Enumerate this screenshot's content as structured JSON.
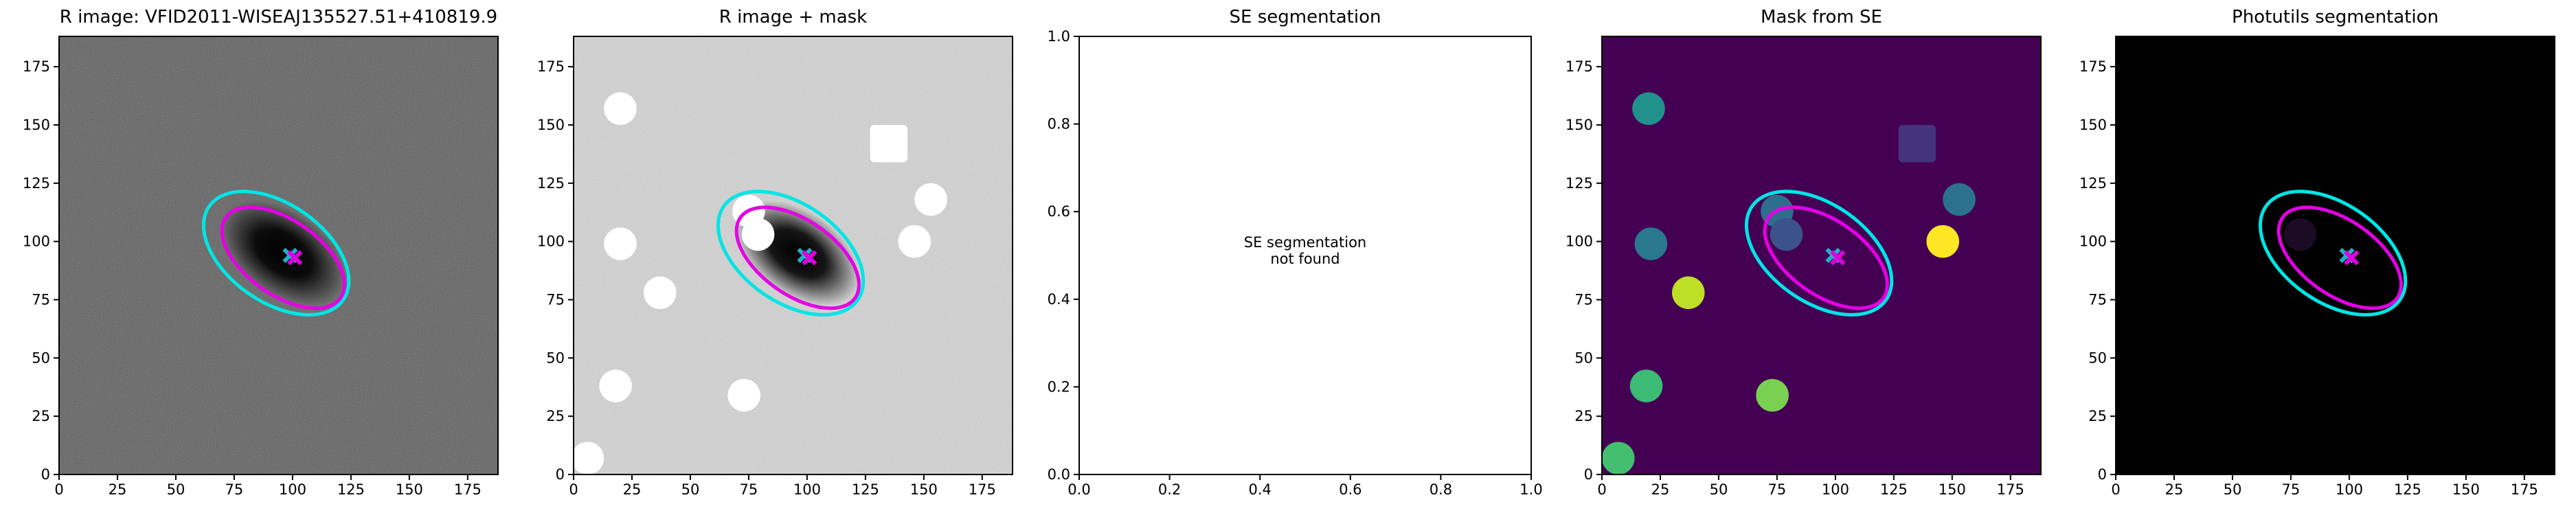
{
  "chart_data": [
    {
      "type": "image",
      "title": "R image: VFID2011-WISEAJ135527.51+410819.9",
      "background": "#5a5a5a",
      "noise": true,
      "xlim": [
        0,
        188
      ],
      "ylim": [
        0,
        188
      ],
      "xticks": [
        0,
        25,
        50,
        75,
        100,
        125,
        150,
        175
      ],
      "yticks": [
        0,
        25,
        50,
        75,
        100,
        125,
        150,
        175
      ],
      "source": {
        "x": 96,
        "y": 95,
        "a": 30,
        "b": 18,
        "angle": -35
      },
      "masks": [],
      "ellipses": [
        {
          "color": "#00e5e5",
          "x": 93,
          "y": 95,
          "a": 35,
          "b": 21,
          "angle": -35
        },
        {
          "color": "#e500e5",
          "x": 96,
          "y": 93,
          "a": 30,
          "b": 16,
          "angle": -35
        }
      ],
      "centers": [
        {
          "color": "#20b0c8",
          "x": 99,
          "y": 94
        },
        {
          "color": "#e000e0",
          "x": 101,
          "y": 93
        }
      ]
    },
    {
      "type": "image",
      "title": "R image + mask",
      "background": "#d6d6d6",
      "noise": true,
      "xlim": [
        0,
        188
      ],
      "ylim": [
        0,
        188
      ],
      "xticks": [
        0,
        25,
        50,
        75,
        100,
        125,
        150,
        175
      ],
      "yticks": [
        0,
        25,
        50,
        75,
        100,
        125,
        150,
        175
      ],
      "source": {
        "x": 96,
        "y": 95,
        "a": 30,
        "b": 18,
        "angle": -35
      },
      "masks": [
        {
          "x": 20,
          "y": 157,
          "r": 7,
          "color": "#ffffff"
        },
        {
          "x": 20,
          "y": 99,
          "r": 7,
          "color": "#ffffff"
        },
        {
          "x": 37,
          "y": 78,
          "r": 7,
          "color": "#ffffff"
        },
        {
          "x": 18,
          "y": 38,
          "r": 7,
          "color": "#ffffff"
        },
        {
          "x": 73,
          "y": 34,
          "r": 7,
          "color": "#ffffff"
        },
        {
          "x": 6,
          "y": 7,
          "r": 7,
          "color": "#ffffff"
        },
        {
          "x": 75,
          "y": 113,
          "r": 7,
          "color": "#ffffff"
        },
        {
          "x": 79,
          "y": 103,
          "r": 7,
          "color": "#ffffff"
        },
        {
          "x": 135,
          "y": 142,
          "r": 8,
          "color": "#ffffff",
          "shape": "square"
        },
        {
          "x": 153,
          "y": 118,
          "r": 7,
          "color": "#ffffff"
        },
        {
          "x": 146,
          "y": 100,
          "r": 7,
          "color": "#ffffff"
        }
      ],
      "ellipses": [
        {
          "color": "#00e5e5",
          "x": 93,
          "y": 95,
          "a": 35,
          "b": 21,
          "angle": -35
        },
        {
          "color": "#e500e5",
          "x": 96,
          "y": 93,
          "a": 30,
          "b": 16,
          "angle": -35
        }
      ],
      "centers": [
        {
          "color": "#20b0c8",
          "x": 99,
          "y": 94
        },
        {
          "color": "#e000e0",
          "x": 101,
          "y": 93
        }
      ]
    },
    {
      "type": "annotation",
      "title": "SE segmentation",
      "text": [
        "SE segmentation",
        "not found"
      ],
      "xlim": [
        0,
        1
      ],
      "ylim": [
        0,
        1
      ],
      "xticks": [
        {
          "value": 0,
          "label": "0.0"
        },
        0.2,
        0.4,
        0.6,
        0.8,
        {
          "value": 1,
          "label": "1.0"
        }
      ],
      "yticks": [
        {
          "value": 0,
          "label": "0.0"
        },
        0.2,
        0.4,
        0.6,
        0.8,
        {
          "value": 1,
          "label": "1.0"
        }
      ]
    },
    {
      "type": "image",
      "title": "Mask from SE",
      "background": "#440154",
      "noise": false,
      "xlim": [
        0,
        188
      ],
      "ylim": [
        0,
        188
      ],
      "xticks": [
        0,
        25,
        50,
        75,
        100,
        125,
        150,
        175
      ],
      "yticks": [
        0,
        25,
        50,
        75,
        100,
        125,
        150,
        175
      ],
      "masks": [
        {
          "x": 20,
          "y": 157,
          "r": 7,
          "color": "#21918c"
        },
        {
          "x": 21,
          "y": 99,
          "r": 7,
          "color": "#2a788e"
        },
        {
          "x": 37,
          "y": 78,
          "r": 7,
          "color": "#bddf26"
        },
        {
          "x": 19,
          "y": 38,
          "r": 7,
          "color": "#3cbb75"
        },
        {
          "x": 73,
          "y": 34,
          "r": 7,
          "color": "#7ad151"
        },
        {
          "x": 7,
          "y": 7,
          "r": 7,
          "color": "#44bf70"
        },
        {
          "x": 75,
          "y": 113,
          "r": 7,
          "color": "#2f6c8e"
        },
        {
          "x": 79,
          "y": 103,
          "r": 7,
          "color": "#3b528b"
        },
        {
          "x": 135,
          "y": 142,
          "r": 8,
          "color": "#46337e",
          "shape": "square"
        },
        {
          "x": 153,
          "y": 118,
          "r": 7,
          "color": "#2c728e"
        },
        {
          "x": 146,
          "y": 100,
          "r": 7,
          "color": "#fde725"
        }
      ],
      "ellipses": [
        {
          "color": "#00e5e5",
          "x": 93,
          "y": 95,
          "a": 35,
          "b": 21,
          "angle": -35
        },
        {
          "color": "#e500e5",
          "x": 96,
          "y": 93,
          "a": 30,
          "b": 16,
          "angle": -35
        }
      ],
      "centers": [
        {
          "color": "#20b0c8",
          "x": 99,
          "y": 94
        },
        {
          "color": "#e000e0",
          "x": 101,
          "y": 93
        }
      ]
    },
    {
      "type": "image",
      "title": "Photutils segmentation",
      "background": "#000000",
      "noise": false,
      "xlim": [
        0,
        188
      ],
      "ylim": [
        0,
        188
      ],
      "xticks": [
        0,
        25,
        50,
        75,
        100,
        125,
        150,
        175
      ],
      "yticks": [
        0,
        25,
        50,
        75,
        100,
        125,
        150,
        175
      ],
      "masks": [
        {
          "x": 79,
          "y": 103,
          "r": 7,
          "color": "#1c0b24"
        }
      ],
      "ellipses": [
        {
          "color": "#00e5e5",
          "x": 93,
          "y": 95,
          "a": 35,
          "b": 21,
          "angle": -35
        },
        {
          "color": "#e500e5",
          "x": 96,
          "y": 93,
          "a": 30,
          "b": 16,
          "angle": -35
        }
      ],
      "centers": [
        {
          "color": "#20b0c8",
          "x": 99,
          "y": 94
        },
        {
          "color": "#e000e0",
          "x": 101,
          "y": 93
        }
      ]
    }
  ]
}
